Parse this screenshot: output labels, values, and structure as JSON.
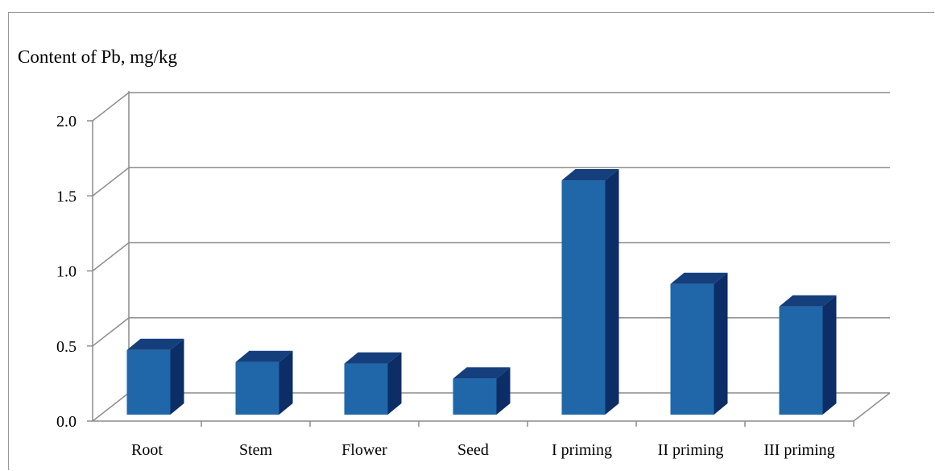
{
  "chart_data": {
    "type": "bar",
    "title": "Content of Pb, mg/kg",
    "xlabel": "",
    "ylabel": "",
    "categories": [
      "Root",
      "Stem",
      "Flower",
      "Seed",
      "I priming",
      "II priming",
      "III priming"
    ],
    "values": [
      0.43,
      0.35,
      0.34,
      0.24,
      1.56,
      0.87,
      0.72
    ],
    "ylim": [
      0,
      2.0
    ],
    "yticks": [
      "0.0",
      "0.5",
      "1.0",
      "1.5",
      "2.0"
    ],
    "grid": true,
    "legend": "none",
    "style": "3d-column",
    "colors": {
      "bar_front": "#1f67a8",
      "bar_side": "#0c2d66",
      "bar_top": "#143f7c",
      "grid": "#8c8c8c"
    }
  }
}
